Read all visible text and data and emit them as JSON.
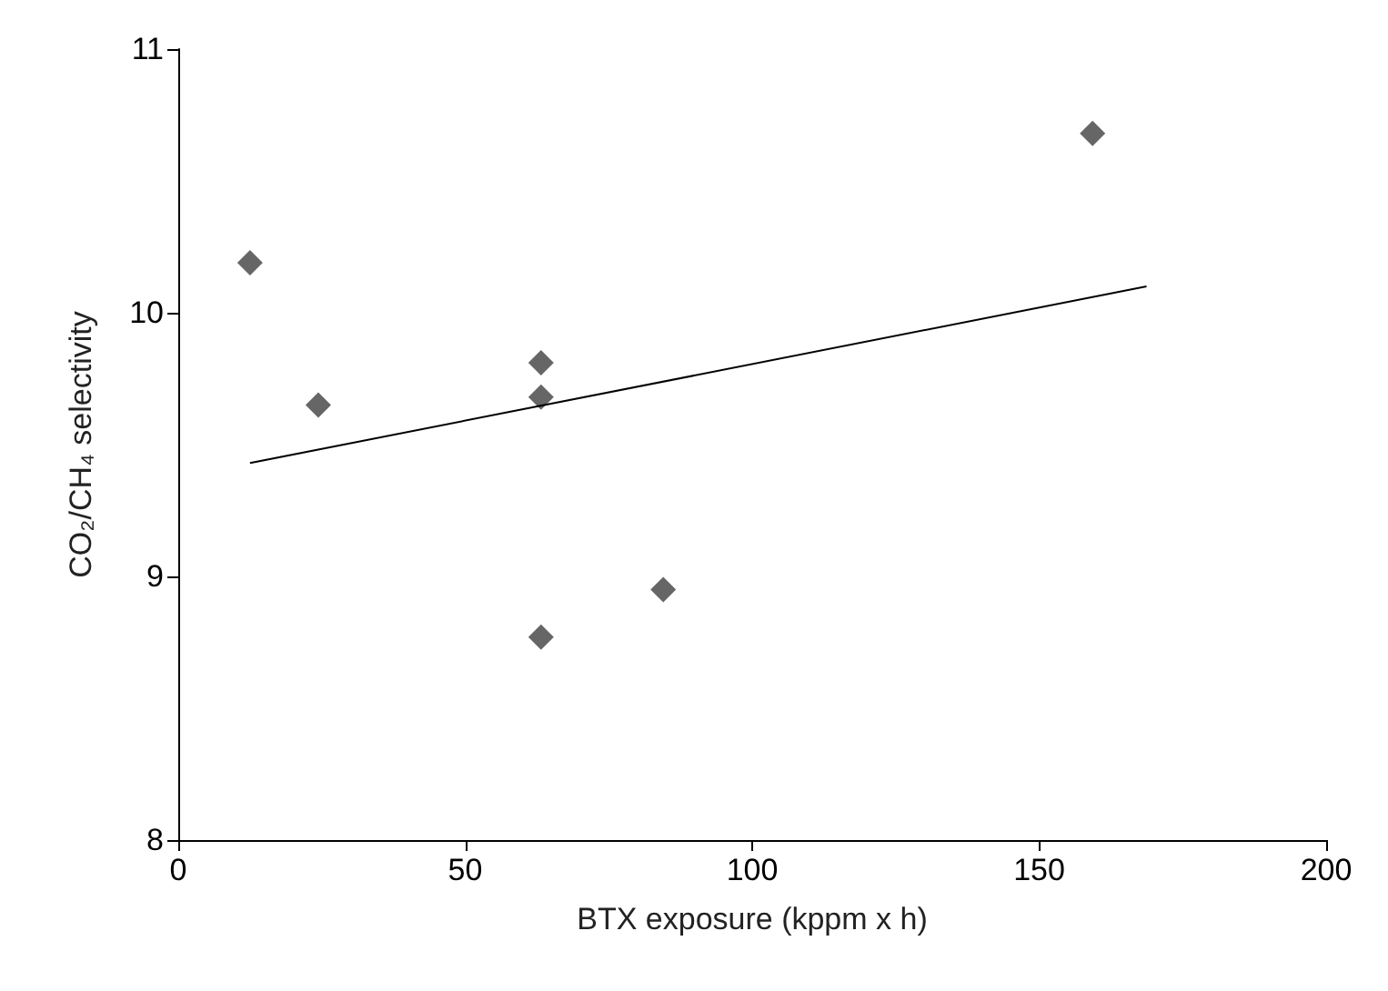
{
  "chart_data": {
    "type": "scatter",
    "xlabel": "BTX exposure (kppm x h)",
    "ylabel": "CO₂/CH₄ selectivity",
    "x": [
      12.5,
      24.4,
      63.2,
      63.2,
      63.2,
      84.5,
      159.3
    ],
    "series": [
      {
        "color": "#404040",
        "values": [
          10.19,
          9.65,
          9.81,
          9.68,
          8.77,
          8.95,
          10.68
        ],
        "marker": "diamond"
      },
      {
        "type": "line",
        "color": "#000000",
        "x": [
          12.5,
          168.7
        ],
        "values": [
          9.43,
          10.1
        ],
        "marker": "none",
        "line_style": "solid"
      }
    ],
    "xlim": [
      0,
      200
    ],
    "xticks": [
      0,
      50,
      100,
      150,
      200
    ],
    "ylim": [
      8,
      11
    ],
    "yticks": [
      8,
      9,
      10,
      11
    ],
    "grid": false
  }
}
